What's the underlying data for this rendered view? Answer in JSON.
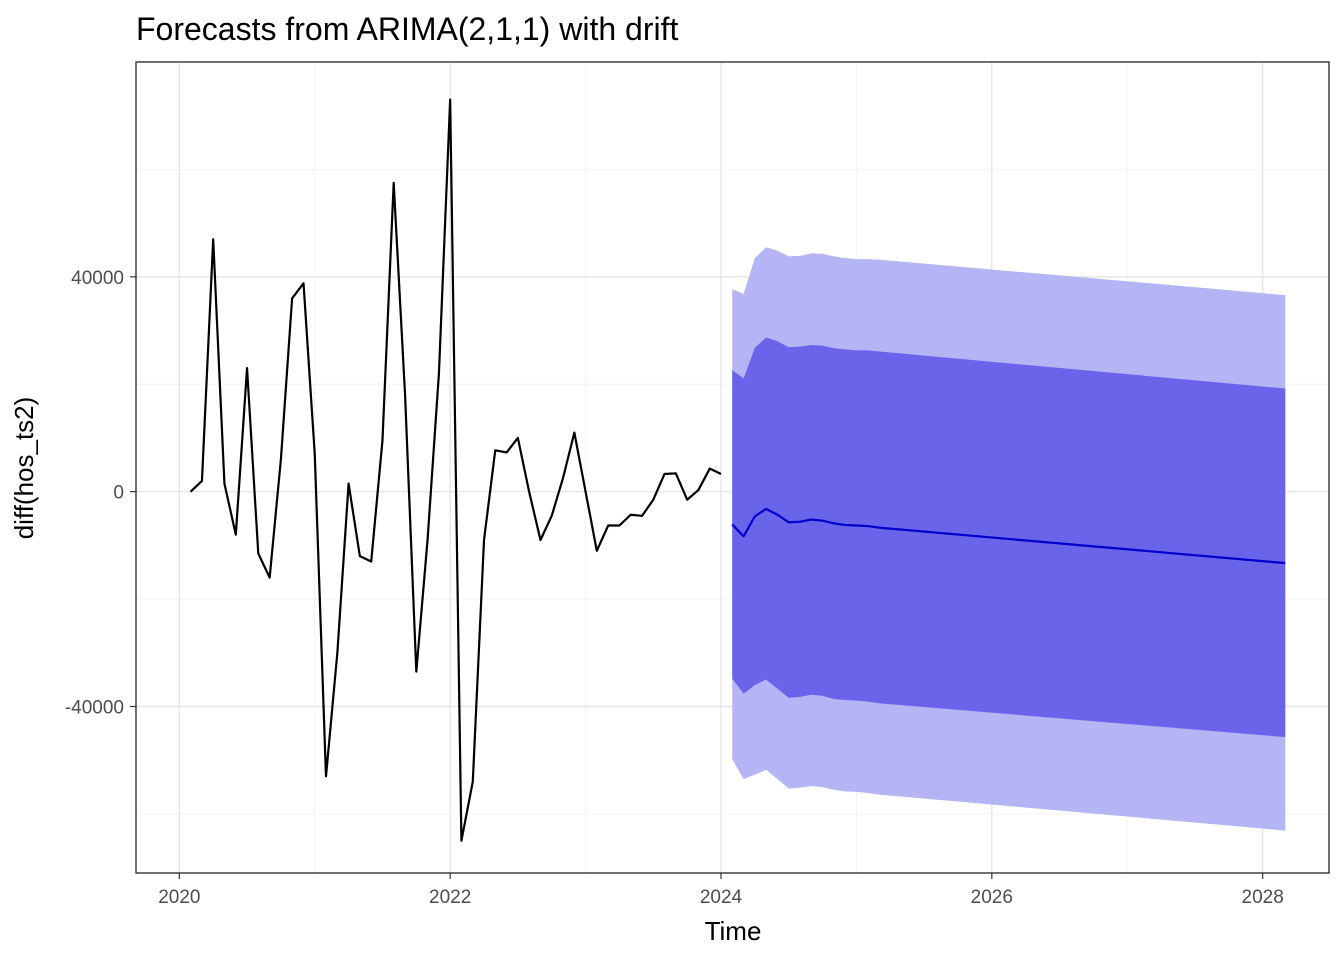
{
  "chart_data": {
    "type": "line",
    "title": "Forecasts from ARIMA(2,1,1) with drift",
    "xlabel": "Time",
    "ylabel": "diff(hos_ts2)",
    "xlim": [
      2019.68,
      2028.49
    ],
    "ylim": [
      -71000,
      80000
    ],
    "x_ticks": [
      2020,
      2022,
      2024,
      2026,
      2028
    ],
    "x_tick_labels": [
      "2020",
      "2022",
      "2024",
      "2026",
      "2028"
    ],
    "y_ticks": [
      -40000,
      0,
      40000
    ],
    "y_tick_labels": [
      "-40000",
      "0",
      "40000"
    ],
    "grid": true,
    "legend": "none",
    "colors": {
      "observed": "#000000",
      "forecast": "#0000cc",
      "interval_80": "#6a64ea",
      "interval_95": "#b5b4f4",
      "grid_major": "#e6e6e6",
      "grid_minor": "#f2f2f2",
      "panel_border": "#333333"
    },
    "series": [
      {
        "role": "observed",
        "x": [
          2020.083,
          2020.167,
          2020.25,
          2020.333,
          2020.417,
          2020.5,
          2020.583,
          2020.667,
          2020.75,
          2020.833,
          2020.917,
          2021.0,
          2021.083,
          2021.167,
          2021.25,
          2021.333,
          2021.417,
          2021.5,
          2021.583,
          2021.667,
          2021.75,
          2021.833,
          2021.917,
          2022.0,
          2022.083,
          2022.167,
          2022.25,
          2022.333,
          2022.417,
          2022.5,
          2022.583,
          2022.667,
          2022.75,
          2022.833,
          2022.917,
          2023.0,
          2023.083,
          2023.167,
          2023.25,
          2023.333,
          2023.417,
          2023.5,
          2023.583,
          2023.667,
          2023.75,
          2023.833,
          2023.917,
          2024.0
        ],
        "values": [
          0,
          2000,
          47000,
          1500,
          -8000,
          23000,
          -11500,
          -16000,
          6000,
          36000,
          38800,
          7000,
          -53000,
          -30000,
          1500,
          -12000,
          -13000,
          9500,
          57500,
          18000,
          -33500,
          -9000,
          22000,
          73000,
          -65000,
          -54000,
          -9000,
          7700,
          7300,
          10000,
          0,
          -9000,
          -4500,
          2500,
          11000,
          0,
          -11000,
          -6300,
          -6300,
          -4300,
          -4500,
          -1500,
          3300,
          3400,
          -1500,
          300,
          4300,
          3300
        ]
      },
      {
        "role": "forecast",
        "x": [
          2024.083,
          2024.167,
          2024.25,
          2024.333,
          2024.417,
          2024.5,
          2024.583,
          2024.667,
          2024.75,
          2024.833,
          2024.917,
          2025.0,
          2025.083,
          2025.167,
          2028.167
        ],
        "values": [
          -6100,
          -8300,
          -4600,
          -3200,
          -4300,
          -5700,
          -5600,
          -5200,
          -5400,
          -5900,
          -6200,
          -6300,
          -6400,
          -6700,
          -13300
        ],
        "lo80": [
          -34800,
          -37600,
          -36000,
          -35000,
          -36700,
          -38400,
          -38200,
          -37800,
          -38000,
          -38600,
          -38800,
          -38900,
          -39100,
          -39400,
          -45700
        ],
        "hi80": [
          22600,
          21100,
          26800,
          28700,
          28000,
          26900,
          27000,
          27300,
          27200,
          26700,
          26500,
          26300,
          26300,
          26100,
          19200
        ],
        "lo95": [
          -49800,
          -53500,
          -52700,
          -51800,
          -53500,
          -55300,
          -55100,
          -54800,
          -55000,
          -55500,
          -55800,
          -55900,
          -56100,
          -56400,
          -63100
        ],
        "hi95": [
          37700,
          36800,
          43500,
          45500,
          44900,
          43800,
          43900,
          44400,
          44300,
          43800,
          43500,
          43300,
          43300,
          43200,
          36600
        ]
      }
    ]
  }
}
